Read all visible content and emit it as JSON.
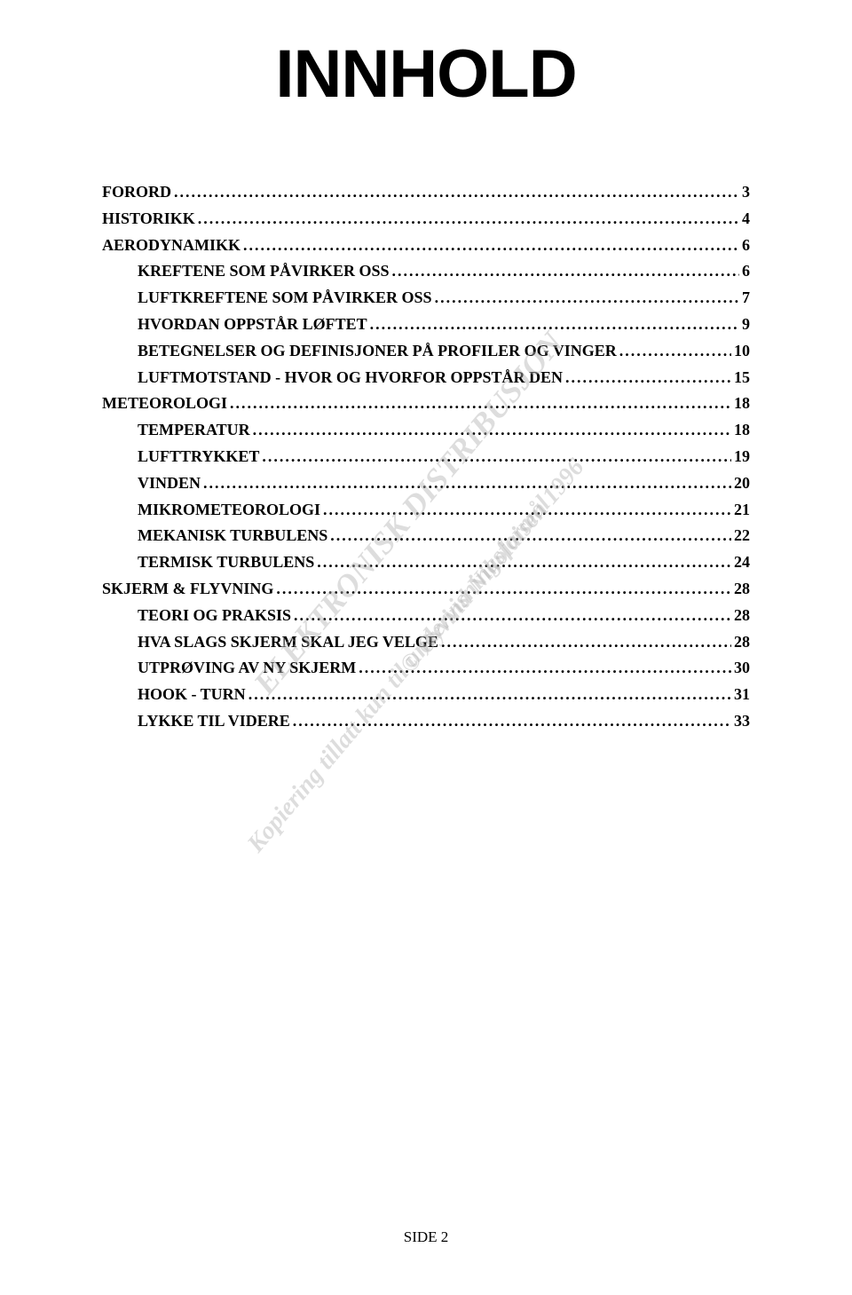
{
  "title": "INNHOLD",
  "watermarks": {
    "line1": "ELEKTRONISK DISTRIBUSJON",
    "line2": "© Øyvind Nikolaisen 1996",
    "line3": "Kopiering tillatt kun til undervisningsformål"
  },
  "footer": "SIDE 2",
  "toc_entries": [
    {
      "label": "FORORD",
      "page": "3",
      "indent": 0
    },
    {
      "label": "HISTORIKK",
      "page": "4",
      "indent": 0
    },
    {
      "label": "AERODYNAMIKK",
      "page": "6",
      "indent": 0
    },
    {
      "label": "KREFTENE SOM PÅVIRKER OSS",
      "page": "6",
      "indent": 1
    },
    {
      "label": "LUFTKREFTENE SOM PÅVIRKER OSS",
      "page": "7",
      "indent": 1
    },
    {
      "label": "HVORDAN OPPSTÅR LØFTET",
      "page": "9",
      "indent": 1
    },
    {
      "label": "BETEGNELSER OG DEFINISJONER PÅ PROFILER OG VINGER",
      "page": "10",
      "indent": 1
    },
    {
      "label": "LUFTMOTSTAND - HVOR OG HVORFOR OPPSTÅR DEN",
      "page": "15",
      "indent": 1
    },
    {
      "label": "METEOROLOGI",
      "page": "18",
      "indent": 0
    },
    {
      "label": "TEMPERATUR",
      "page": "18",
      "indent": 1
    },
    {
      "label": "LUFTTRYKKET",
      "page": "19",
      "indent": 1
    },
    {
      "label": "VINDEN",
      "page": "20",
      "indent": 1
    },
    {
      "label": "MIKROMETEOROLOGI",
      "page": "21",
      "indent": 1
    },
    {
      "label": "MEKANISK TURBULENS",
      "page": "22",
      "indent": 1
    },
    {
      "label": "TERMISK TURBULENS",
      "page": "24",
      "indent": 1
    },
    {
      "label": "SKJERM & FLYVNING",
      "page": "28",
      "indent": 0
    },
    {
      "label": "TEORI OG PRAKSIS",
      "page": "28",
      "indent": 1
    },
    {
      "label": "HVA SLAGS SKJERM SKAL JEG VELGE",
      "page": "28",
      "indent": 1
    },
    {
      "label": "UTPRØVING AV NY SKJERM",
      "page": "30",
      "indent": 1
    },
    {
      "label": "HOOK - TURN",
      "page": "31",
      "indent": 1
    },
    {
      "label": "LYKKE TIL VIDERE",
      "page": "33",
      "indent": 1
    }
  ]
}
